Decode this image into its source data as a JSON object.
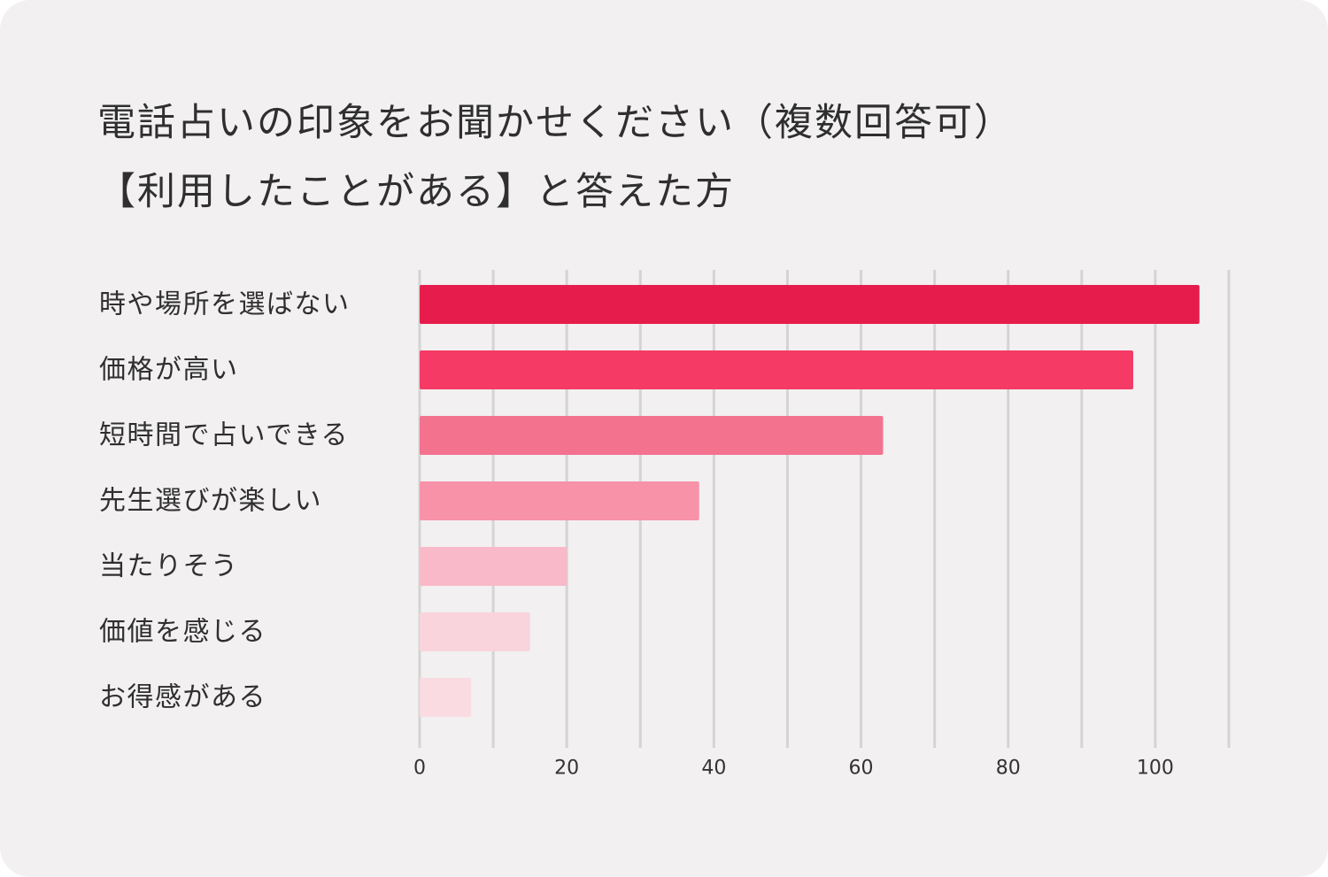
{
  "title_line1": "電話占いの印象をお聞かせください（複数回答可）",
  "title_line2": "【利用したことがある】と答えた方",
  "chart_data": {
    "type": "bar",
    "orientation": "horizontal",
    "categories": [
      "時や場所を選ばない",
      "価格が高い",
      "短時間で占いできる",
      "先生選びが楽しい",
      "当たりそう",
      "価値を感じる",
      "お得感がある"
    ],
    "values": [
      106,
      97,
      63,
      38,
      20,
      15,
      7
    ],
    "colors": [
      "#e61c4c",
      "#f43a65",
      "#f3738f",
      "#f792a8",
      "#f9b9c8",
      "#f9d4dc",
      "#f9dbe1"
    ],
    "xlim": [
      0,
      110
    ],
    "xticks": [
      0,
      20,
      40,
      60,
      80,
      100
    ],
    "gridlines": [
      0,
      10,
      20,
      30,
      40,
      50,
      60,
      70,
      80,
      90,
      100,
      110
    ],
    "grid": true,
    "gridline_color": "#d4d4d4"
  }
}
